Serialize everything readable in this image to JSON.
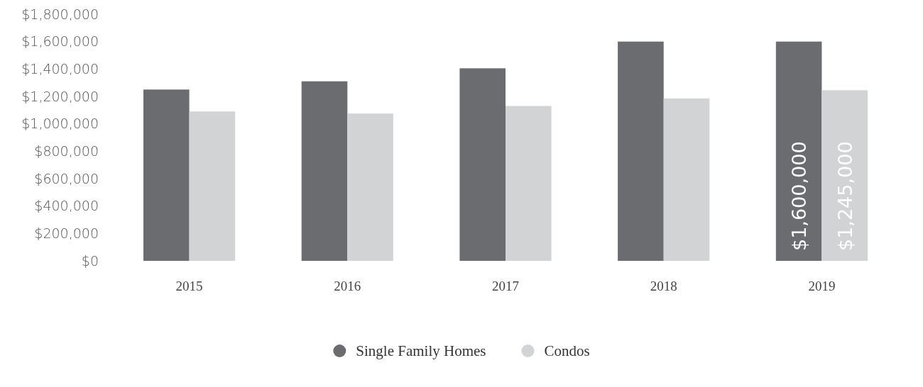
{
  "chart_data": {
    "type": "bar",
    "categories": [
      "2015",
      "2016",
      "2017",
      "2018",
      "2019"
    ],
    "series": [
      {
        "name": "Single Family Homes",
        "color": "#6b6c70",
        "values": [
          1250000,
          1310000,
          1405000,
          1600000,
          1600000
        ],
        "value_labels": [
          null,
          null,
          null,
          null,
          "$1,600,000"
        ]
      },
      {
        "name": "Condos",
        "color": "#d2d3d5",
        "values": [
          1090000,
          1075000,
          1130000,
          1185000,
          1245000
        ],
        "value_labels": [
          null,
          null,
          null,
          null,
          "$1,245,000"
        ]
      }
    ],
    "ylim": [
      0,
      1800000
    ],
    "yticks": [
      {
        "value": 0,
        "label": "$0"
      },
      {
        "value": 200000,
        "label": "$200,000"
      },
      {
        "value": 400000,
        "label": "$400,000"
      },
      {
        "value": 600000,
        "label": "$600,000"
      },
      {
        "value": 800000,
        "label": "$800,000"
      },
      {
        "value": 1000000,
        "label": "$1,000,000"
      },
      {
        "value": 1200000,
        "label": "$1,200,000"
      },
      {
        "value": 1400000,
        "label": "$1,400,000"
      },
      {
        "value": 1600000,
        "label": "$1,600,000"
      },
      {
        "value": 1800000,
        "label": "$1,800,000"
      }
    ],
    "grid": false,
    "legend": "bottom"
  }
}
